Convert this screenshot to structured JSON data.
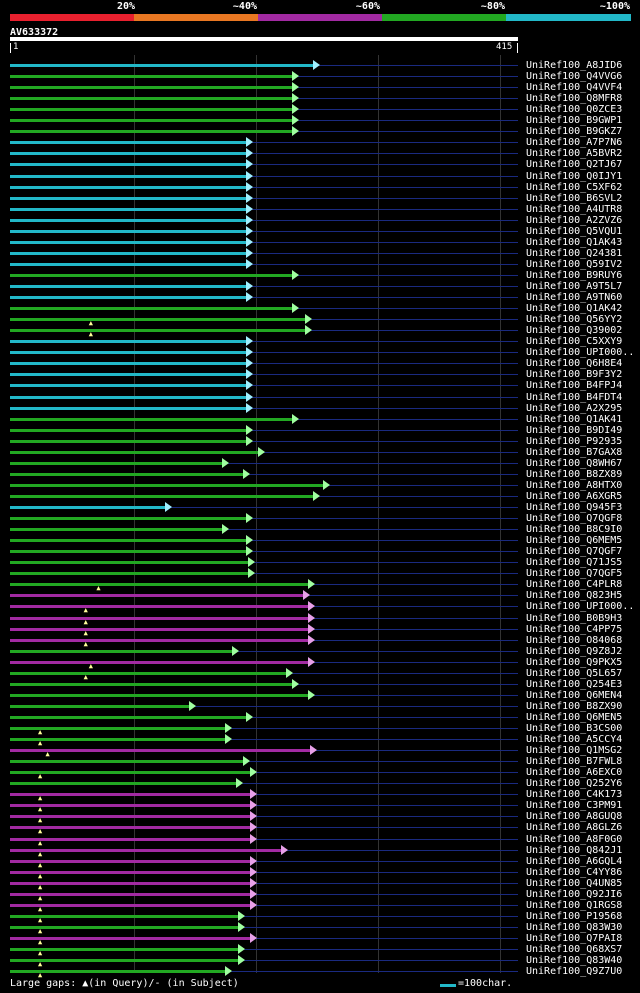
{
  "legend": [
    {
      "label": "20%",
      "color": "#e8202e"
    },
    {
      "label": "~40%",
      "color": "#e87722"
    },
    {
      "label": "~60%",
      "color": "#a22aa2"
    },
    {
      "label": "~80%",
      "color": "#22a822"
    },
    {
      "label": "~100%",
      "color": "#22b8c8"
    }
  ],
  "query": {
    "name": "AV633372",
    "start": "1",
    "end": "415"
  },
  "colors": {
    "cyan": "#22b8c8",
    "green": "#22a822",
    "magenta": "#a22aa2"
  },
  "hits": [
    {
      "name": "UniRef100_A8JID6",
      "c": "cyan",
      "e": 0.598,
      "gap": null
    },
    {
      "name": "UniRef100_Q4VVG6",
      "c": "green",
      "e": 0.558,
      "gap": null
    },
    {
      "name": "UniRef100_Q4VVF4",
      "c": "green",
      "e": 0.558,
      "gap": null
    },
    {
      "name": "UniRef100_Q8MFR8",
      "c": "green",
      "e": 0.558,
      "gap": null
    },
    {
      "name": "UniRef100_Q0ZCE3",
      "c": "green",
      "e": 0.558,
      "gap": null
    },
    {
      "name": "UniRef100_B9GWP1",
      "c": "green",
      "e": 0.558,
      "gap": null
    },
    {
      "name": "UniRef100_B9GKZ7",
      "c": "green",
      "e": 0.558,
      "gap": null
    },
    {
      "name": "UniRef100_A7P7N6",
      "c": "cyan",
      "e": 0.466,
      "gap": null
    },
    {
      "name": "UniRef100_A5BVR2",
      "c": "cyan",
      "e": 0.466,
      "gap": null
    },
    {
      "name": "UniRef100_Q2TJ67",
      "c": "cyan",
      "e": 0.466,
      "gap": null
    },
    {
      "name": "UniRef100_Q0IJY1",
      "c": "cyan",
      "e": 0.466,
      "gap": null
    },
    {
      "name": "UniRef100_C5XF62",
      "c": "cyan",
      "e": 0.466,
      "gap": null
    },
    {
      "name": "UniRef100_B6SVL2",
      "c": "cyan",
      "e": 0.466,
      "gap": null
    },
    {
      "name": "UniRef100_A4UTR8",
      "c": "cyan",
      "e": 0.466,
      "gap": null
    },
    {
      "name": "UniRef100_A2ZVZ6",
      "c": "cyan",
      "e": 0.466,
      "gap": null
    },
    {
      "name": "UniRef100_Q5VQU1",
      "c": "cyan",
      "e": 0.466,
      "gap": null
    },
    {
      "name": "UniRef100_Q1AK43",
      "c": "cyan",
      "e": 0.466,
      "gap": null
    },
    {
      "name": "UniRef100_Q24381",
      "c": "cyan",
      "e": 0.466,
      "gap": null
    },
    {
      "name": "UniRef100_Q59IV2",
      "c": "cyan",
      "e": 0.466,
      "gap": null
    },
    {
      "name": "UniRef100_B9RUY6",
      "c": "green",
      "e": 0.558,
      "gap": null
    },
    {
      "name": "UniRef100_A9T5L7",
      "c": "cyan",
      "e": 0.466,
      "gap": null
    },
    {
      "name": "UniRef100_A9TN60",
      "c": "cyan",
      "e": 0.466,
      "gap": null
    },
    {
      "name": "UniRef100_Q1AK42",
      "c": "green",
      "e": 0.558,
      "gap": null
    },
    {
      "name": "UniRef100_Q56YY2",
      "c": "green",
      "e": 0.582,
      "gap": 0.155
    },
    {
      "name": "UniRef100_Q39002",
      "c": "green",
      "e": 0.582,
      "gap": 0.155
    },
    {
      "name": "UniRef100_C5XXY9",
      "c": "cyan",
      "e": 0.466,
      "gap": null
    },
    {
      "name": "UniRef100_UPI000..",
      "c": "cyan",
      "e": 0.466,
      "gap": null
    },
    {
      "name": "UniRef100_Q6H8E4",
      "c": "cyan",
      "e": 0.466,
      "gap": null
    },
    {
      "name": "UniRef100_B9F3Y2",
      "c": "cyan",
      "e": 0.466,
      "gap": null
    },
    {
      "name": "UniRef100_B4FPJ4",
      "c": "cyan",
      "e": 0.466,
      "gap": null
    },
    {
      "name": "UniRef100_B4FDT4",
      "c": "cyan",
      "e": 0.466,
      "gap": null
    },
    {
      "name": "UniRef100_A2X295",
      "c": "cyan",
      "e": 0.466,
      "gap": null
    },
    {
      "name": "UniRef100_Q1AK41",
      "c": "green",
      "e": 0.558,
      "gap": null
    },
    {
      "name": "UniRef100_B9DI49",
      "c": "green",
      "e": 0.466,
      "gap": null
    },
    {
      "name": "UniRef100_P92935",
      "c": "green",
      "e": 0.466,
      "gap": null
    },
    {
      "name": "UniRef100_B7GAX8",
      "c": "green",
      "e": 0.49,
      "gap": null
    },
    {
      "name": "UniRef100_Q8WH67",
      "c": "green",
      "e": 0.42,
      "gap": null
    },
    {
      "name": "UniRef100_B8ZX89",
      "c": "green",
      "e": 0.46,
      "gap": null
    },
    {
      "name": "UniRef100_A8HTX0",
      "c": "green",
      "e": 0.618,
      "gap": null
    },
    {
      "name": "UniRef100_A6XGR5",
      "c": "green",
      "e": 0.598,
      "gap": null
    },
    {
      "name": "UniRef100_Q945F3",
      "c": "cyan",
      "e": 0.308,
      "gap": null
    },
    {
      "name": "UniRef100_Q7QGF8",
      "c": "green",
      "e": 0.466,
      "gap": null
    },
    {
      "name": "UniRef100_B8C9I0",
      "c": "green",
      "e": 0.42,
      "gap": null
    },
    {
      "name": "UniRef100_Q6MEM5",
      "c": "green",
      "e": 0.466,
      "gap": null
    },
    {
      "name": "UniRef100_Q7QGF7",
      "c": "green",
      "e": 0.466,
      "gap": null
    },
    {
      "name": "UniRef100_Q71JS5",
      "c": "green",
      "e": 0.47,
      "gap": null
    },
    {
      "name": "UniRef100_Q7QGF5",
      "c": "green",
      "e": 0.47,
      "gap": null
    },
    {
      "name": "UniRef100_C4PLR8",
      "c": "green",
      "e": 0.588,
      "gap": 0.17
    },
    {
      "name": "UniRef100_Q823H5",
      "c": "magenta",
      "e": 0.578,
      "gap": null
    },
    {
      "name": "UniRef100_UPI000..",
      "c": "magenta",
      "e": 0.588,
      "gap": 0.145
    },
    {
      "name": "UniRef100_B0B9H3",
      "c": "magenta",
      "e": 0.588,
      "gap": 0.145
    },
    {
      "name": "UniRef100_C4PP75",
      "c": "magenta",
      "e": 0.588,
      "gap": 0.145
    },
    {
      "name": "UniRef100_O84068",
      "c": "magenta",
      "e": 0.588,
      "gap": 0.145
    },
    {
      "name": "UniRef100_Q9Z8J2",
      "c": "green",
      "e": 0.438,
      "gap": null
    },
    {
      "name": "UniRef100_Q9PKX5",
      "c": "magenta",
      "e": 0.588,
      "gap": 0.155
    },
    {
      "name": "UniRef100_Q5L657",
      "c": "green",
      "e": 0.545,
      "gap": 0.145
    },
    {
      "name": "UniRef100_Q254E3",
      "c": "green",
      "e": 0.558,
      "gap": null
    },
    {
      "name": "UniRef100_Q6MEN4",
      "c": "green",
      "e": 0.588,
      "gap": null
    },
    {
      "name": "UniRef100_B8ZX90",
      "c": "green",
      "e": 0.355,
      "gap": null
    },
    {
      "name": "UniRef100_Q6MEN5",
      "c": "green",
      "e": 0.466,
      "gap": null
    },
    {
      "name": "UniRef100_B3CS00",
      "c": "green",
      "e": 0.426,
      "gap": 0.055
    },
    {
      "name": "UniRef100_A5CCY4",
      "c": "green",
      "e": 0.426,
      "gap": 0.055
    },
    {
      "name": "UniRef100_Q1MSG2",
      "c": "magenta",
      "e": 0.593,
      "gap": 0.07
    },
    {
      "name": "UniRef100_B7FWL8",
      "c": "green",
      "e": 0.46,
      "gap": null
    },
    {
      "name": "UniRef100_A6EXC0",
      "c": "green",
      "e": 0.475,
      "gap": 0.055
    },
    {
      "name": "UniRef100_Q252Y6",
      "c": "green",
      "e": 0.446,
      "gap": null
    },
    {
      "name": "UniRef100_C4K173",
      "c": "magenta",
      "e": 0.475,
      "gap": 0.055
    },
    {
      "name": "UniRef100_C3PM91",
      "c": "magenta",
      "e": 0.475,
      "gap": 0.055
    },
    {
      "name": "UniRef100_A8GUQ8",
      "c": "magenta",
      "e": 0.475,
      "gap": 0.055
    },
    {
      "name": "UniRef100_A8GLZ6",
      "c": "magenta",
      "e": 0.475,
      "gap": 0.055
    },
    {
      "name": "UniRef100_A8F0G0",
      "c": "magenta",
      "e": 0.475,
      "gap": 0.055
    },
    {
      "name": "UniRef100_Q842J1",
      "c": "magenta",
      "e": 0.535,
      "gap": 0.055
    },
    {
      "name": "UniRef100_A6GQL4",
      "c": "magenta",
      "e": 0.475,
      "gap": 0.055
    },
    {
      "name": "UniRef100_C4YY86",
      "c": "magenta",
      "e": 0.475,
      "gap": 0.055
    },
    {
      "name": "UniRef100_Q4UN85",
      "c": "magenta",
      "e": 0.475,
      "gap": 0.055
    },
    {
      "name": "UniRef100_Q92JI6",
      "c": "magenta",
      "e": 0.475,
      "gap": 0.055
    },
    {
      "name": "UniRef100_Q1RGS8",
      "c": "magenta",
      "e": 0.475,
      "gap": 0.055
    },
    {
      "name": "UniRef100_P19568",
      "c": "green",
      "e": 0.45,
      "gap": 0.055
    },
    {
      "name": "UniRef100_Q83W30",
      "c": "green",
      "e": 0.45,
      "gap": 0.055
    },
    {
      "name": "UniRef100_Q7PAI8",
      "c": "magenta",
      "e": 0.475,
      "gap": 0.055
    },
    {
      "name": "UniRef100_Q68XS7",
      "c": "green",
      "e": 0.45,
      "gap": 0.055
    },
    {
      "name": "UniRef100_Q83W40",
      "c": "green",
      "e": 0.45,
      "gap": 0.055
    },
    {
      "name": "UniRef100_Q9Z7U0",
      "c": "green",
      "e": 0.426,
      "gap": 0.055
    }
  ],
  "footer": {
    "gaps_text": "Large gaps: ▲(in Query)/- (in Subject)",
    "scale_text": "=100char."
  }
}
